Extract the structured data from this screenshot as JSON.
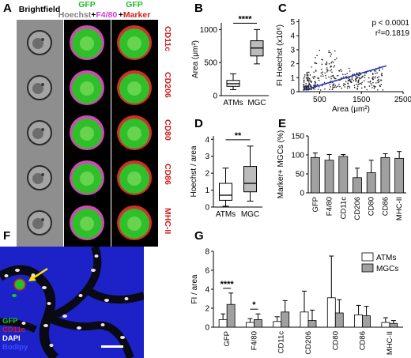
{
  "panel_a": {
    "label": "A",
    "col_headers": {
      "brightfield": "Brightfield",
      "gfp1": "GFP",
      "hoechst": "Hoechst",
      "plus1": "+",
      "f480": "F4/80",
      "gfp2": "GFP",
      "plus2": "+",
      "marker": "Marker"
    },
    "rows": [
      "CD11c",
      "CD206",
      "CD80",
      "CD86",
      "MHC-II"
    ],
    "colors": {
      "gfp": "#22c02b",
      "hoechst": "#7f7f7f",
      "f480": "#d43dd4",
      "marker": "#d01c1c"
    }
  },
  "panel_f": {
    "label": "F",
    "legend": [
      "GFP",
      "CD11c",
      "DAPI",
      "Bodipy"
    ],
    "legend_colors": [
      "#22c02b",
      "#d01c1c",
      "#ffffff",
      "#3b4cff"
    ]
  },
  "chart_data": [
    {
      "panel": "B",
      "type": "box",
      "categories": [
        "ATMs",
        "MGC"
      ],
      "ylabel": "Area (μm²)",
      "yticks": [
        0,
        500,
        1000
      ],
      "ylim": [
        0,
        1100
      ],
      "significance": "****",
      "series": [
        {
          "name": "ATMs",
          "min": 90,
          "q1": 140,
          "median": 180,
          "q3": 230,
          "max": 330
        },
        {
          "name": "MGC",
          "min": 480,
          "q1": 600,
          "median": 720,
          "q3": 830,
          "max": 1000
        }
      ]
    },
    {
      "panel": "C",
      "type": "scatter",
      "xlabel": "Area (μm²)",
      "ylabel": "FI Hoechst (x10⁶)",
      "xticks": [
        500,
        1500,
        2500
      ],
      "yticks": [
        0,
        1,
        2,
        3,
        4,
        5
      ],
      "xlim": [
        0,
        2500
      ],
      "ylim": [
        0,
        5.2
      ],
      "annotations": [
        "p < 0.0001",
        "r²=0.1819"
      ],
      "fit": {
        "x": [
          100,
          2100
        ],
        "y": [
          0.1,
          1.85
        ]
      }
    },
    {
      "panel": "D",
      "type": "box",
      "categories": [
        "ATMs",
        "MGC"
      ],
      "ylabel": "Hoechst / area",
      "yticks": [
        0,
        1,
        2,
        3,
        4
      ],
      "ylim": [
        0,
        4.2
      ],
      "significance": "**",
      "series": [
        {
          "name": "ATMs",
          "min": 0.05,
          "q1": 0.4,
          "median": 0.7,
          "q3": 1.4,
          "max": 2.3
        },
        {
          "name": "MGC",
          "min": 0.35,
          "q1": 0.9,
          "median": 1.4,
          "q3": 2.4,
          "max": 3.6
        }
      ]
    },
    {
      "panel": "E",
      "type": "bar",
      "categories": [
        "GFP",
        "F4/80",
        "CD11c",
        "CD206",
        "CD80",
        "CD86",
        "MHC-II"
      ],
      "ylabel": "Marker+ MGCs (%)",
      "yticks": [
        0,
        50,
        100,
        150
      ],
      "ylim": [
        0,
        150
      ],
      "values": [
        93,
        86,
        96,
        40,
        53,
        93,
        91
      ],
      "errors": [
        12,
        15,
        5,
        25,
        33,
        10,
        18
      ]
    },
    {
      "panel": "G",
      "type": "bar",
      "categories": [
        "GFP",
        "F4/80",
        "CD11c",
        "CD206",
        "CD80",
        "CD86",
        "MHC-II"
      ],
      "ylabel": "FI / area",
      "yticks": [
        0,
        2,
        4,
        6,
        8
      ],
      "ylim": [
        0,
        8
      ],
      "series": [
        {
          "name": "ATMs",
          "values": [
            0.8,
            0.5,
            0.6,
            1.6,
            3.1,
            1.3,
            0.5
          ],
          "errors": [
            0.6,
            0.4,
            0.5,
            2.2,
            4.4,
            1.0,
            0.5
          ],
          "color": "#ffffff"
        },
        {
          "name": "MGCs",
          "values": [
            2.4,
            0.8,
            1.6,
            0.7,
            1.5,
            1.2,
            0.4
          ],
          "errors": [
            1.2,
            0.6,
            1.2,
            1.1,
            1.4,
            1.0,
            0.3
          ],
          "color": "#a0a0a0"
        }
      ],
      "significance": [
        {
          "category": "GFP",
          "text": "****"
        },
        {
          "category": "F4/80",
          "text": "*"
        }
      ]
    }
  ],
  "labels": {
    "B": "B",
    "C": "C",
    "D": "D",
    "E": "E",
    "G": "G"
  }
}
